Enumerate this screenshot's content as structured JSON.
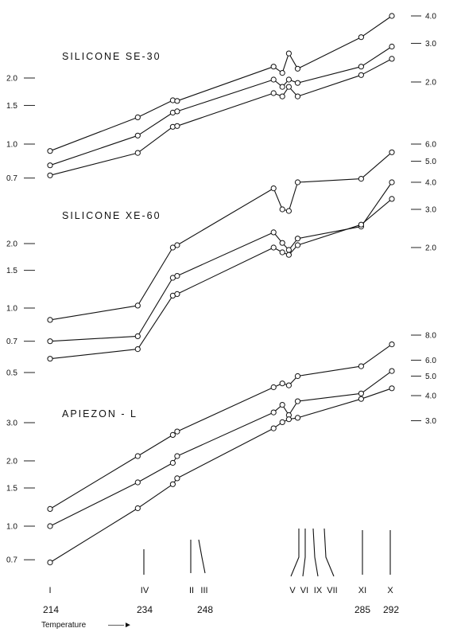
{
  "chart_data": {
    "type": "line",
    "x_axis": {
      "label": "Temperature",
      "arrow": "——►",
      "compounds": [
        {
          "label": "I",
          "x": 214
        },
        {
          "label": "IV",
          "x": 234
        },
        {
          "label": "II",
          "x": 242
        },
        {
          "label": "III",
          "x": 243
        },
        {
          "label": "V",
          "x": 265
        },
        {
          "label": "VI",
          "x": 267
        },
        {
          "label": "IX",
          "x": 268.5
        },
        {
          "label": "VII",
          "x": 270.5
        },
        {
          "label": "XI",
          "x": 285
        },
        {
          "label": "X",
          "x": 292
        }
      ],
      "temperature_ticks": [
        214,
        234,
        248,
        285,
        292
      ]
    },
    "panels": [
      {
        "title": "SILICONE  SE-30",
        "left_ticks": [
          {
            "label": "2.0",
            "value": 2.0
          },
          {
            "label": "1.5",
            "value": 1.5
          },
          {
            "label": "1.0",
            "value": 1.0
          },
          {
            "label": "0.7",
            "value": 0.7
          }
        ],
        "right_ticks": [
          {
            "label": "4.0",
            "value": 4.0
          },
          {
            "label": "3.0",
            "value": 3.0
          },
          {
            "label": "2.0",
            "value": 2.0
          }
        ],
        "series": [
          {
            "x": [
              214,
              234,
              242,
              243,
              265,
              267,
              268.5,
              270.5,
              285,
              292
            ],
            "y": [
              0.93,
              1.38,
              1.65,
              1.64,
              2.35,
              2.2,
              2.7,
              2.3,
              3.2,
              4.0
            ]
          },
          {
            "x": [
              214,
              234,
              242,
              243,
              265,
              267,
              268.5,
              270.5,
              285,
              292
            ],
            "y": [
              0.8,
              1.14,
              1.45,
              1.47,
              2.05,
              1.9,
              2.05,
              1.98,
              2.35,
              2.9
            ]
          },
          {
            "x": [
              214,
              234,
              242,
              243,
              265,
              267,
              268.5,
              270.5,
              285,
              292
            ],
            "y": [
              0.72,
              0.95,
              1.25,
              1.26,
              1.78,
              1.72,
              1.9,
              1.72,
              2.15,
              2.55
            ]
          }
        ]
      },
      {
        "title": "SILICONE  XE-60",
        "left_ticks": [
          {
            "label": "2.0",
            "value": 2.0
          },
          {
            "label": "1.5",
            "value": 1.5
          },
          {
            "label": "1.0",
            "value": 1.0
          },
          {
            "label": "0.7",
            "value": 0.7
          },
          {
            "label": "0.5",
            "value": 0.5
          }
        ],
        "right_ticks": [
          {
            "label": "6.0",
            "value": 6.0
          },
          {
            "label": "5.0",
            "value": 5.0
          },
          {
            "label": "4.0",
            "value": 4.0
          },
          {
            "label": "3.0",
            "value": 3.0
          },
          {
            "label": "2.0",
            "value": 2.0
          }
        ],
        "series": [
          {
            "x": [
              214,
              234,
              242,
              243,
              265,
              267,
              268.5,
              270.5,
              285,
              292
            ],
            "y": [
              0.88,
              1.08,
              2.0,
              2.05,
              3.75,
              3.0,
              2.95,
              4.0,
              4.15,
              5.5
            ]
          },
          {
            "x": [
              214,
              234,
              242,
              243,
              265,
              267,
              268.5,
              270.5,
              285,
              292
            ],
            "y": [
              0.7,
              0.78,
              1.45,
              1.48,
              2.35,
              2.1,
              1.95,
              2.2,
              2.5,
              4.0
            ]
          },
          {
            "x": [
              214,
              234,
              242,
              243,
              265,
              267,
              268.5,
              270.5,
              285,
              292
            ],
            "y": [
              0.58,
              0.68,
              1.2,
              1.22,
              2.0,
              1.9,
              1.85,
              2.05,
              2.55,
              3.35
            ]
          }
        ]
      },
      {
        "title": "APIEZON - L",
        "left_ticks": [
          {
            "label": "3.0",
            "value": 3.0
          },
          {
            "label": "2.0",
            "value": 2.0
          },
          {
            "label": "1.5",
            "value": 1.5
          },
          {
            "label": "1.0",
            "value": 1.0
          },
          {
            "label": "0.7",
            "value": 0.7
          }
        ],
        "right_ticks": [
          {
            "label": "8.0",
            "value": 8.0
          },
          {
            "label": "6.0",
            "value": 6.0
          },
          {
            "label": "5.0",
            "value": 5.0
          },
          {
            "label": "4.0",
            "value": 4.0
          },
          {
            "label": "3.0",
            "value": 3.0
          }
        ],
        "series": [
          {
            "x": [
              214,
              234,
              242,
              243,
              265,
              267,
              268.5,
              270.5,
              285,
              292
            ],
            "y": [
              1.2,
              2.0,
              2.55,
              2.65,
              4.4,
              4.6,
              4.5,
              5.0,
              5.6,
              7.2
            ]
          },
          {
            "x": [
              214,
              234,
              242,
              243,
              265,
              267,
              268.5,
              270.5,
              285,
              292
            ],
            "y": [
              1.0,
              1.48,
              1.85,
              2.0,
              3.3,
              3.6,
              3.2,
              3.75,
              4.1,
              5.3
            ]
          },
          {
            "x": [
              214,
              234,
              242,
              243,
              265,
              267,
              268.5,
              270.5,
              285,
              292
            ],
            "y": [
              0.68,
              1.1,
              1.45,
              1.55,
              2.75,
              2.95,
              3.05,
              3.1,
              3.85,
              4.35
            ]
          }
        ]
      }
    ]
  }
}
